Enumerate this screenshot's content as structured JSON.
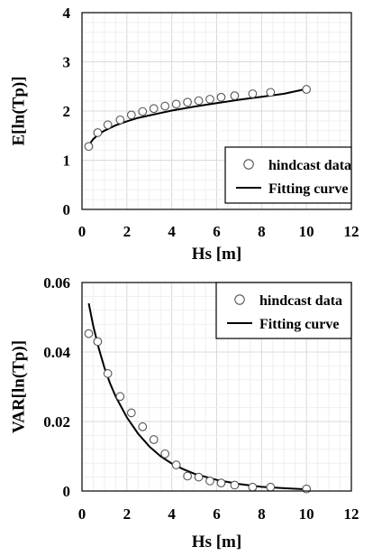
{
  "chart_data": [
    {
      "type": "scatter",
      "xlabel": "Hs [m]",
      "ylabel": "E[ln(Tp)]",
      "xlim": [
        0,
        12
      ],
      "ylim": [
        0,
        4
      ],
      "xticks": [
        "0",
        "2",
        "4",
        "6",
        "8",
        "10",
        "12"
      ],
      "yticks": [
        "0",
        "1",
        "2",
        "3",
        "4"
      ],
      "grid": true,
      "legend_position": "bottom-right",
      "series": [
        {
          "name": "hindcast data",
          "kind": "markers",
          "x": [
            0.3,
            0.7,
            1.15,
            1.7,
            2.2,
            2.7,
            3.2,
            3.7,
            4.2,
            4.7,
            5.2,
            5.7,
            6.2,
            6.8,
            7.6,
            8.4,
            10.0
          ],
          "y": [
            1.28,
            1.56,
            1.72,
            1.82,
            1.92,
            1.99,
            2.05,
            2.1,
            2.14,
            2.18,
            2.21,
            2.24,
            2.28,
            2.31,
            2.35,
            2.38,
            2.44
          ]
        },
        {
          "name": "Fitting curve",
          "kind": "line",
          "x": [
            0.3,
            0.5,
            0.75,
            1.0,
            1.5,
            2.0,
            2.5,
            3.0,
            3.5,
            4.0,
            5.0,
            6.0,
            7.0,
            8.0,
            9.0,
            10.0
          ],
          "y": [
            1.3,
            1.43,
            1.53,
            1.6,
            1.71,
            1.79,
            1.86,
            1.91,
            1.96,
            2.01,
            2.09,
            2.16,
            2.23,
            2.29,
            2.35,
            2.45
          ]
        }
      ]
    },
    {
      "type": "scatter",
      "xlabel": "Hs [m]",
      "ylabel": "VAR[ln(Tp)]",
      "xlim": [
        0,
        12
      ],
      "ylim": [
        0,
        0.06
      ],
      "xticks": [
        "0",
        "2",
        "4",
        "6",
        "8",
        "10",
        "12"
      ],
      "yticks": [
        "0",
        "0.02",
        "0.04",
        "0.06"
      ],
      "grid": true,
      "legend_position": "top-right",
      "series": [
        {
          "name": "hindcast data",
          "kind": "markers",
          "x": [
            0.3,
            0.7,
            1.15,
            1.7,
            2.2,
            2.7,
            3.2,
            3.7,
            4.2,
            4.7,
            5.2,
            5.7,
            6.2,
            6.8,
            7.6,
            8.4,
            10.0
          ],
          "y": [
            0.0453,
            0.043,
            0.0338,
            0.0272,
            0.0225,
            0.0185,
            0.0148,
            0.0107,
            0.0075,
            0.0043,
            0.004,
            0.0029,
            0.0023,
            0.0017,
            0.0011,
            0.0011,
            0.0006
          ]
        },
        {
          "name": "Fitting curve",
          "kind": "line",
          "x": [
            0.3,
            0.5,
            0.75,
            1.0,
            1.25,
            1.5,
            2.0,
            2.5,
            3.0,
            3.5,
            4.0,
            4.5,
            5.0,
            6.0,
            7.0,
            8.0,
            9.0,
            10.0
          ],
          "y": [
            0.054,
            0.0475,
            0.041,
            0.0355,
            0.031,
            0.0272,
            0.0212,
            0.0165,
            0.0128,
            0.01,
            0.0079,
            0.0063,
            0.005,
            0.0032,
            0.002,
            0.0012,
            0.0008,
            0.0005
          ]
        }
      ]
    }
  ]
}
